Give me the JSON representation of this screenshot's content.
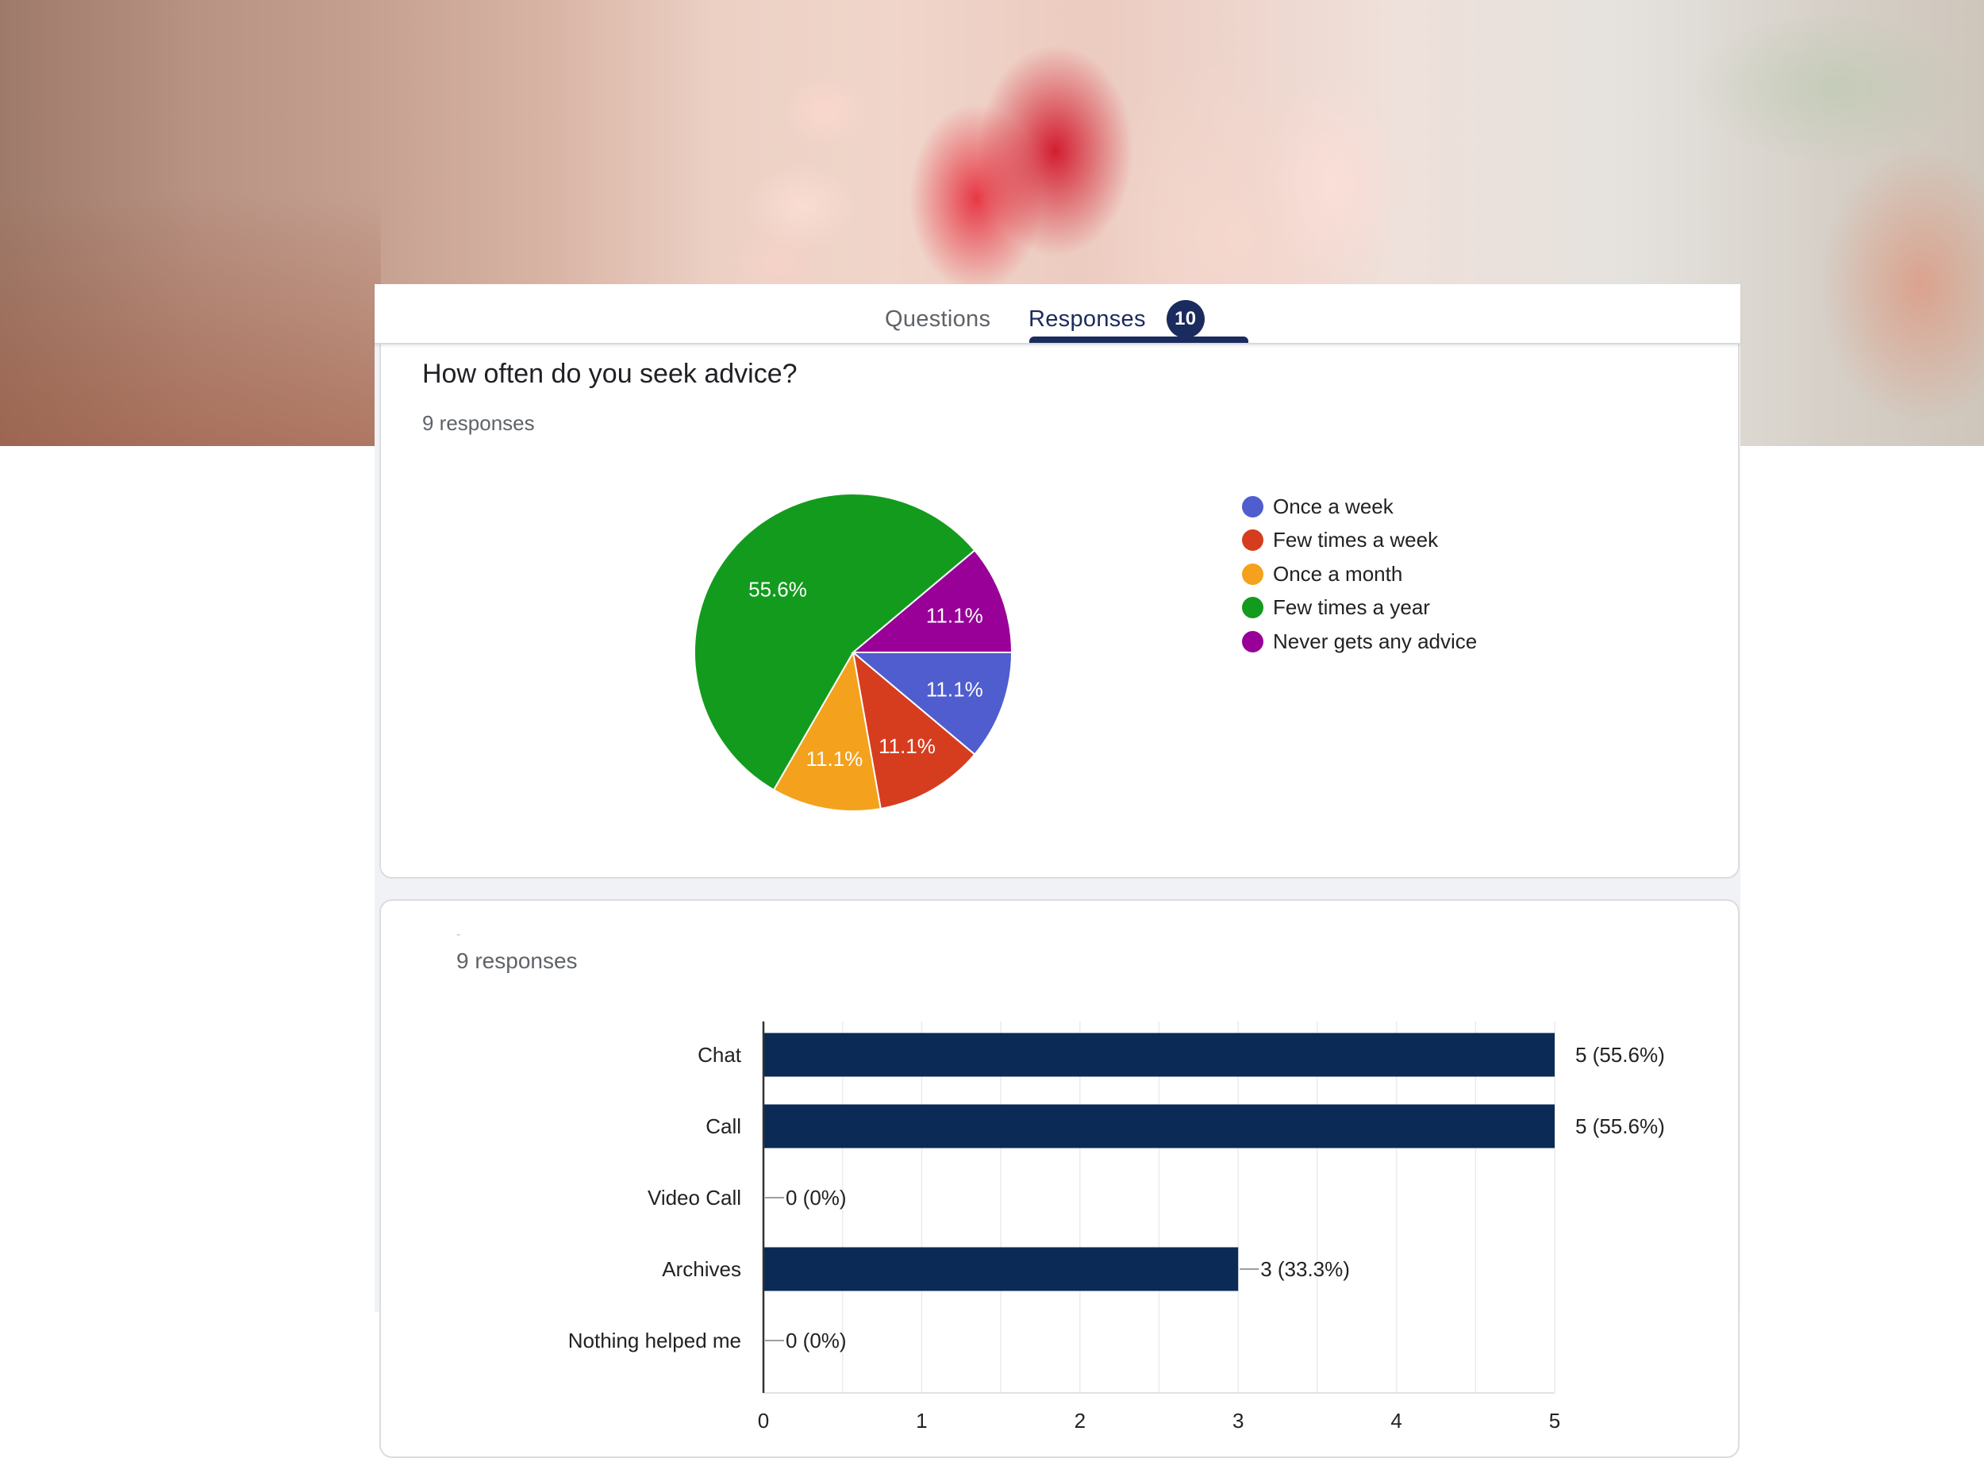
{
  "tabs": {
    "questions_label": "Questions",
    "responses_label": "Responses",
    "responses_count": "10",
    "active": "Responses"
  },
  "colors": {
    "accent": "#1a2b5e",
    "bar": "#0b2a55",
    "once_a_week": "#4f5dcf",
    "few_times_a_week": "#d63d1f",
    "once_a_month": "#f4a11d",
    "few_times_a_year": "#139b1e",
    "never": "#980098"
  },
  "questions": [
    {
      "title": "How often do you seek advice?",
      "response_count": "9 responses"
    },
    {
      "title": "-",
      "response_count": "9 responses"
    }
  ],
  "chart_data": [
    {
      "type": "pie",
      "title": "How often do you seek advice?",
      "categories": [
        "Once a week",
        "Few times a week",
        "Once a month",
        "Few times a year",
        "Never gets any advice"
      ],
      "values": [
        1,
        1,
        1,
        5,
        1
      ],
      "percent_labels": [
        "11.1%",
        "11.1%",
        "11.1%",
        "55.6%",
        "11.1%"
      ],
      "colors": [
        "#4f5dcf",
        "#d63d1f",
        "#f4a11d",
        "#139b1e",
        "#980098"
      ],
      "legend_position": "right",
      "total": 9
    },
    {
      "type": "bar",
      "orientation": "horizontal",
      "title": "-",
      "categories": [
        "Chat",
        "Call",
        "Video Call",
        "Archives",
        "Nothing helped me"
      ],
      "values": [
        5,
        5,
        0,
        3,
        0
      ],
      "value_labels": [
        "5 (55.6%)",
        "5 (55.6%)",
        "0 (0%)",
        "3 (33.3%)",
        "0 (0%)"
      ],
      "xlim": [
        0,
        5
      ],
      "xticks": [
        0,
        1,
        2,
        3,
        4,
        5
      ],
      "grid": true,
      "color": "#0b2a55",
      "total": 9
    }
  ]
}
